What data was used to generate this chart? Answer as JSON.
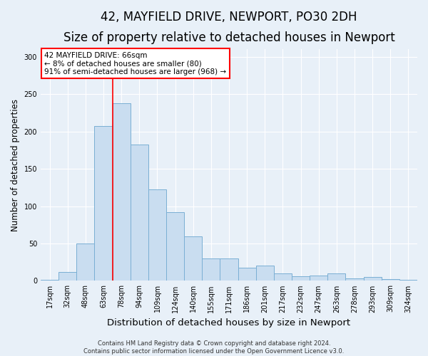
{
  "title": "42, MAYFIELD DRIVE, NEWPORT, PO30 2DH",
  "subtitle": "Size of property relative to detached houses in Newport",
  "xlabel": "Distribution of detached houses by size in Newport",
  "ylabel": "Number of detached properties",
  "footer_line1": "Contains HM Land Registry data © Crown copyright and database right 2024.",
  "footer_line2": "Contains public sector information licensed under the Open Government Licence v3.0.",
  "categories": [
    "17sqm",
    "32sqm",
    "48sqm",
    "63sqm",
    "78sqm",
    "94sqm",
    "109sqm",
    "124sqm",
    "140sqm",
    "155sqm",
    "171sqm",
    "186sqm",
    "201sqm",
    "217sqm",
    "232sqm",
    "247sqm",
    "263sqm",
    "278sqm",
    "293sqm",
    "309sqm",
    "324sqm"
  ],
  "values": [
    1,
    12,
    50,
    207,
    238,
    183,
    122,
    92,
    60,
    30,
    30,
    18,
    20,
    10,
    6,
    7,
    10,
    3,
    5,
    2,
    1
  ],
  "bar_color": "#c9ddf0",
  "bar_edge_color": "#7aafd4",
  "annotation_line_bin": 3,
  "annotation_text_line1": "42 MAYFIELD DRIVE: 66sqm",
  "annotation_text_line2": "← 8% of detached houses are smaller (80)",
  "annotation_text_line3": "91% of semi-detached houses are larger (968) →",
  "annotation_box_color": "white",
  "annotation_box_edge": "red",
  "vline_color": "red",
  "ylim": [
    0,
    310
  ],
  "background_color": "#e8f0f8",
  "plot_bg_color": "#e8f0f8",
  "grid_color": "white",
  "title_fontsize": 12,
  "subtitle_fontsize": 10,
  "xlabel_fontsize": 9.5,
  "ylabel_fontsize": 8.5,
  "tick_fontsize": 7,
  "annotation_fontsize": 7.5,
  "footer_fontsize": 6
}
